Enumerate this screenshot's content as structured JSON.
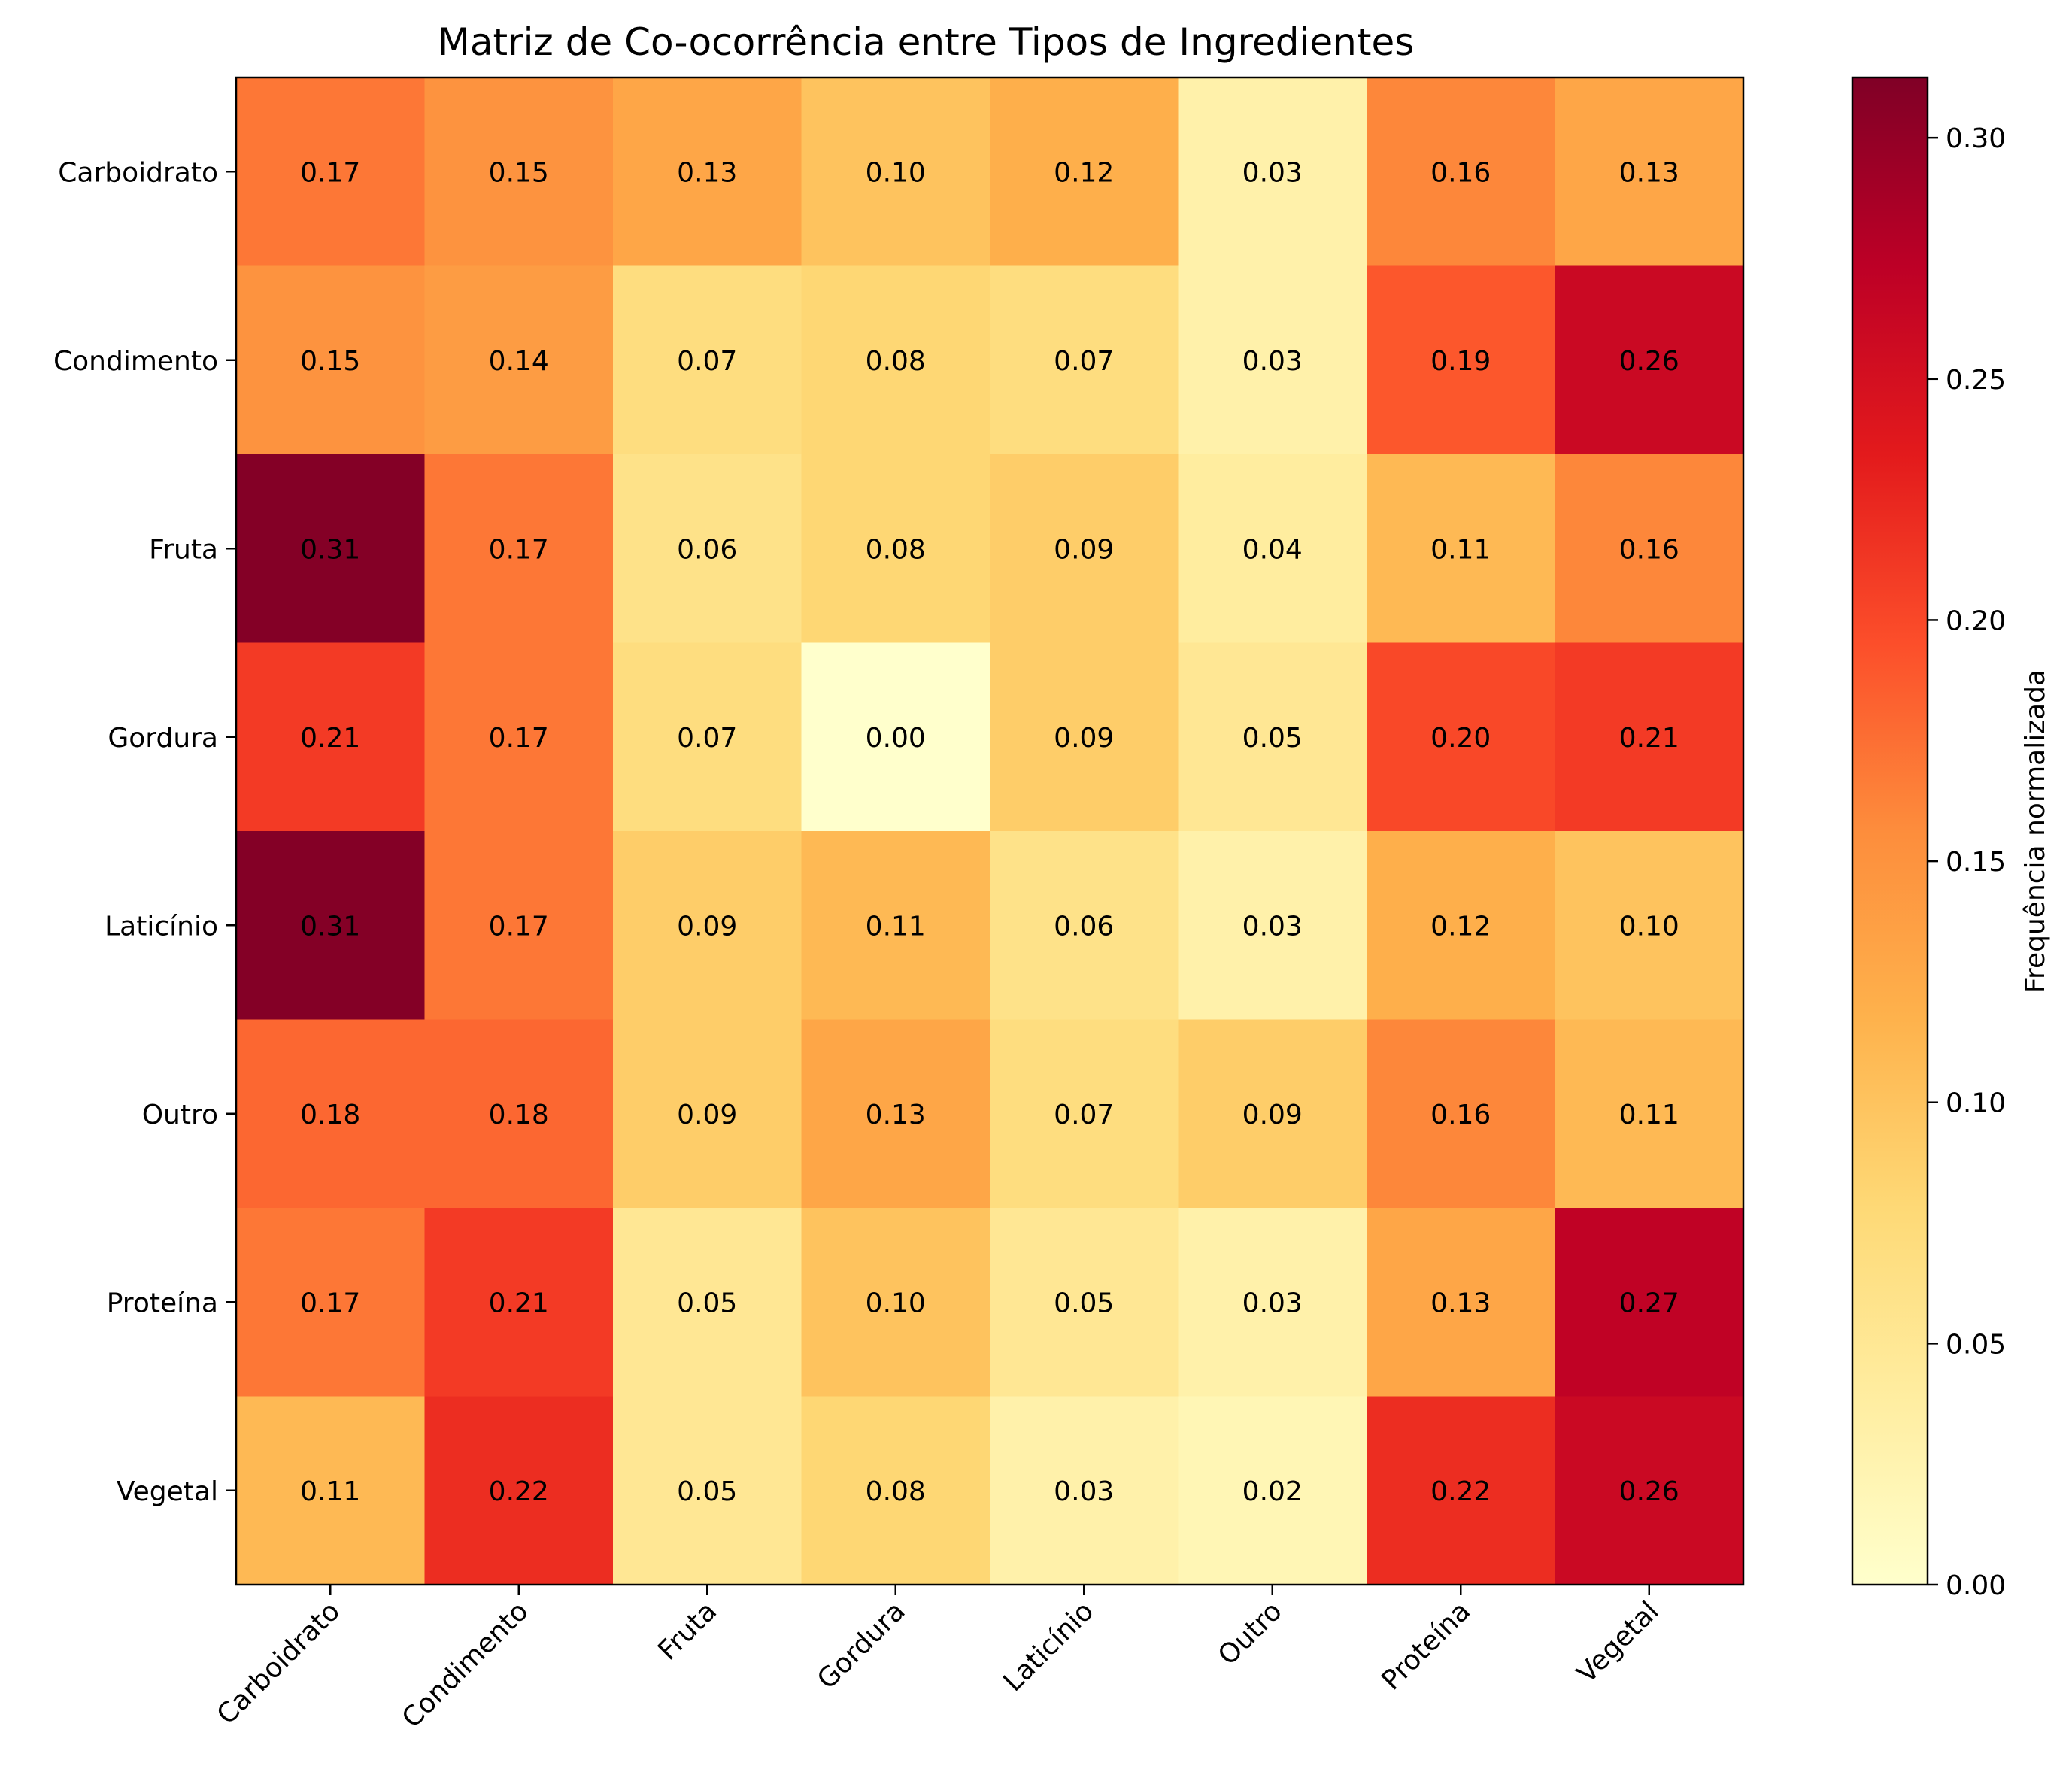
{
  "chart_data": {
    "type": "heatmap",
    "title": "Matriz de Co-ocorrência entre Tipos de Ingredientes",
    "xlabel": "",
    "ylabel": "",
    "x_categories": [
      "Carboidrato",
      "Condimento",
      "Fruta",
      "Gordura",
      "Laticínio",
      "Outro",
      "Proteína",
      "Vegetal"
    ],
    "y_categories": [
      "Carboidrato",
      "Condimento",
      "Fruta",
      "Gordura",
      "Laticínio",
      "Outro",
      "Proteína",
      "Vegetal"
    ],
    "values": [
      [
        0.17,
        0.15,
        0.13,
        0.1,
        0.12,
        0.03,
        0.16,
        0.13
      ],
      [
        0.15,
        0.14,
        0.07,
        0.08,
        0.07,
        0.03,
        0.19,
        0.26
      ],
      [
        0.31,
        0.17,
        0.06,
        0.08,
        0.09,
        0.04,
        0.11,
        0.16
      ],
      [
        0.21,
        0.17,
        0.07,
        0.0,
        0.09,
        0.05,
        0.2,
        0.21
      ],
      [
        0.31,
        0.17,
        0.09,
        0.11,
        0.06,
        0.03,
        0.12,
        0.1
      ],
      [
        0.18,
        0.18,
        0.09,
        0.13,
        0.07,
        0.09,
        0.16,
        0.11
      ],
      [
        0.17,
        0.21,
        0.05,
        0.1,
        0.05,
        0.03,
        0.13,
        0.27
      ],
      [
        0.11,
        0.22,
        0.05,
        0.08,
        0.03,
        0.02,
        0.22,
        0.26
      ]
    ],
    "value_labels": [
      [
        "0.17",
        "0.15",
        "0.13",
        "0.10",
        "0.12",
        "0.03",
        "0.16",
        "0.13"
      ],
      [
        "0.15",
        "0.14",
        "0.07",
        "0.08",
        "0.07",
        "0.03",
        "0.19",
        "0.26"
      ],
      [
        "0.31",
        "0.17",
        "0.06",
        "0.08",
        "0.09",
        "0.04",
        "0.11",
        "0.16"
      ],
      [
        "0.21",
        "0.17",
        "0.07",
        "0.00",
        "0.09",
        "0.05",
        "0.20",
        "0.21"
      ],
      [
        "0.31",
        "0.17",
        "0.09",
        "0.11",
        "0.06",
        "0.03",
        "0.12",
        "0.10"
      ],
      [
        "0.18",
        "0.18",
        "0.09",
        "0.13",
        "0.07",
        "0.09",
        "0.16",
        "0.11"
      ],
      [
        "0.17",
        "0.21",
        "0.05",
        "0.10",
        "0.05",
        "0.03",
        "0.13",
        "0.27"
      ],
      [
        "0.11",
        "0.22",
        "0.05",
        "0.08",
        "0.03",
        "0.02",
        "0.22",
        "0.26"
      ]
    ],
    "colormap": "YlOrRd",
    "colormap_stops": [
      "#ffffcc",
      "#ffeda0",
      "#fed976",
      "#feb24c",
      "#fd8d3c",
      "#fc4e2a",
      "#e31a1c",
      "#bd0026",
      "#800026"
    ],
    "vmin": 0.0,
    "vmax": 0.3125,
    "colorbar": {
      "label": "Frequência normalizada",
      "ticks": [
        0.0,
        0.05,
        0.1,
        0.15,
        0.2,
        0.25,
        0.3
      ],
      "tick_labels": [
        "0.00",
        "0.05",
        "0.10",
        "0.15",
        "0.20",
        "0.25",
        "0.30"
      ],
      "placement": "right"
    },
    "grid": false
  }
}
